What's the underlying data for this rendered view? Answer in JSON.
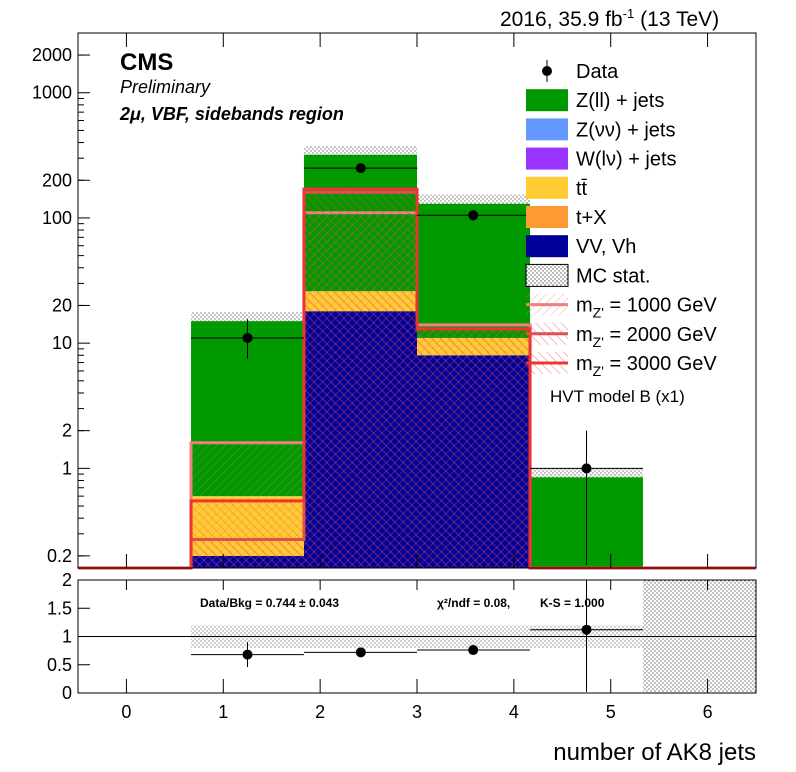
{
  "header": {
    "lumi_text": "2016, 35.9 fb",
    "lumi_exp": "-1",
    "energy": "(13 TeV)"
  },
  "labels": {
    "cms": "CMS",
    "preliminary": "Preliminary",
    "region": "2μ, VBF, sidebands region",
    "xlabel": "number of AK8 jets",
    "hvt_note": "HVT model B (x1)",
    "ratio_stats": "Data/Bkg = 0.744 ± 0.043",
    "ratio_chi2": "χ²/ndf = 0.08,",
    "ratio_ks": "K-S = 1.000"
  },
  "colors": {
    "zll": "#009900",
    "znn": "#6699ff",
    "wlv": "#9933ff",
    "tt": "#ffcc33",
    "tX": "#ff9933",
    "vv": "#000099",
    "signal1": "#f08080",
    "signal2": "#e05050",
    "signal3": "#ee3333"
  },
  "legend": [
    {
      "key": "data",
      "label": "Data"
    },
    {
      "key": "zll",
      "label": "Z(ll) + jets"
    },
    {
      "key": "znn",
      "label": "Z(νν) + jets"
    },
    {
      "key": "wlv",
      "label": "W(lν) + jets"
    },
    {
      "key": "tt",
      "label": "tt̄"
    },
    {
      "key": "tX",
      "label": "t+X"
    },
    {
      "key": "vv",
      "label": "VV, Vh"
    },
    {
      "key": "mcstat",
      "label": "MC stat."
    },
    {
      "key": "signal1",
      "label": "m",
      "sub": "Z'",
      "rest": " = 1000 GeV"
    },
    {
      "key": "signal2",
      "label": "m",
      "sub": "Z'",
      "rest": " = 2000 GeV"
    },
    {
      "key": "signal3",
      "label": "m",
      "sub": "Z'",
      "rest": " = 3000 GeV"
    }
  ],
  "chart_data": {
    "type": "bar",
    "scale": "log",
    "x_edges": [
      -0.5,
      0.667,
      1.833,
      3.0,
      4.167,
      5.333,
      6.5
    ],
    "xlim": [
      -0.5,
      6.5
    ],
    "ylim": [
      0.16,
      3000
    ],
    "xticks": [
      "0",
      "1",
      "2",
      "3",
      "4",
      "5",
      "6"
    ],
    "yticks": [
      "0.2",
      "1",
      "2",
      "10",
      "20",
      "100",
      "200",
      "1000",
      "2000"
    ],
    "stack": {
      "vv": [
        0,
        0.2,
        18,
        8,
        0,
        0
      ],
      "tt": [
        0,
        0.6,
        26,
        11,
        0,
        0
      ],
      "zll": [
        0,
        15,
        320,
        130,
        0.85,
        0
      ]
    },
    "data": [
      {
        "x": 1.25,
        "y": 11,
        "yerr_lo": 7.5,
        "yerr_hi": 15.5
      },
      {
        "x": 2.42,
        "y": 250,
        "yerr_lo": 235,
        "yerr_hi": 265
      },
      {
        "x": 3.58,
        "y": 105,
        "yerr_lo": 95,
        "yerr_hi": 115
      },
      {
        "x": 4.75,
        "y": 1.0,
        "yerr_lo": 0.17,
        "yerr_hi": 2.0
      }
    ],
    "signals": [
      {
        "key": "signal1",
        "values": [
          0,
          1.6,
          110,
          14,
          0,
          0
        ]
      },
      {
        "key": "signal2",
        "values": [
          0,
          0.27,
          160,
          13,
          0,
          0
        ]
      },
      {
        "key": "signal3",
        "values": [
          0,
          0.55,
          170,
          13,
          0,
          0
        ]
      }
    ],
    "ratio": {
      "ylim": [
        0,
        2
      ],
      "yticks": [
        "0",
        "0.5",
        "1",
        "1.5",
        "2"
      ],
      "points": [
        {
          "x": 1.25,
          "y": 0.68,
          "xlo": 0.667,
          "xhi": 1.833,
          "yerr": 0.22
        },
        {
          "x": 2.42,
          "y": 0.72,
          "xlo": 1.833,
          "xhi": 3.0,
          "yerr": 0.05
        },
        {
          "x": 3.58,
          "y": 0.76,
          "xlo": 3.0,
          "xhi": 4.167,
          "yerr": 0.07
        },
        {
          "x": 4.75,
          "y": 1.12,
          "xlo": 4.167,
          "xhi": 5.333,
          "yerr": 1.1
        }
      ]
    }
  }
}
